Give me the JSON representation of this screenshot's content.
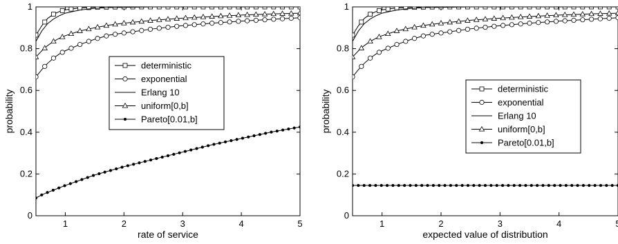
{
  "chart_data": [
    {
      "type": "line",
      "xlabel": "rate of service",
      "ylabel": "probability",
      "xlim": [
        0.5,
        5
      ],
      "ylim": [
        0,
        1
      ],
      "xticks": [
        1,
        2,
        3,
        4,
        5
      ],
      "yticks": [
        0,
        0.2,
        0.4,
        0.6,
        0.8,
        1
      ],
      "ytick_labels": [
        "0",
        "0.2",
        "0.4",
        "0.6",
        "0.8",
        "1"
      ],
      "grid": false,
      "legend_position": "center-right",
      "x": [
        0.5,
        0.6,
        0.7,
        0.8,
        0.9,
        1.0,
        1.25,
        1.5,
        1.75,
        2.0,
        2.5,
        3.0,
        3.5,
        4.0,
        4.5,
        5.0
      ],
      "series": [
        {
          "name": "deterministic",
          "marker": "square",
          "values": [
            0.865,
            0.91,
            0.945,
            0.965,
            0.978,
            0.986,
            0.995,
            0.998,
            0.999,
            1.0,
            1.0,
            1.0,
            1.0,
            1.0,
            1.0,
            1.0
          ]
        },
        {
          "name": "exponential",
          "marker": "circle",
          "values": [
            0.665,
            0.7,
            0.73,
            0.755,
            0.775,
            0.79,
            0.82,
            0.845,
            0.865,
            0.875,
            0.895,
            0.91,
            0.922,
            0.932,
            0.94,
            0.948
          ]
        },
        {
          "name": "Erlang 10",
          "marker": "none",
          "values": [
            0.835,
            0.885,
            0.92,
            0.942,
            0.958,
            0.97,
            0.985,
            0.993,
            0.997,
            0.998,
            1.0,
            1.0,
            1.0,
            1.0,
            1.0,
            1.0
          ]
        },
        {
          "name": "uniform[0,b]",
          "marker": "triangle",
          "values": [
            0.76,
            0.79,
            0.815,
            0.835,
            0.85,
            0.862,
            0.885,
            0.9,
            0.913,
            0.922,
            0.936,
            0.946,
            0.954,
            0.961,
            0.966,
            0.97
          ]
        },
        {
          "name": "Pareto[0.01,b]",
          "marker": "dot",
          "values": [
            0.085,
            0.1,
            0.112,
            0.123,
            0.134,
            0.145,
            0.17,
            0.195,
            0.215,
            0.235,
            0.27,
            0.305,
            0.34,
            0.37,
            0.4,
            0.425
          ]
        }
      ]
    },
    {
      "type": "line",
      "xlabel": "expected value of distribution",
      "ylabel": "probability",
      "xlim": [
        0.5,
        5
      ],
      "ylim": [
        0,
        1
      ],
      "xticks": [
        1,
        2,
        3,
        4,
        5
      ],
      "yticks": [
        0,
        0.2,
        0.4,
        0.6,
        0.8,
        1
      ],
      "ytick_labels": [
        "0",
        "0.2",
        "0.4",
        "0.6",
        "0.8",
        "1"
      ],
      "grid": false,
      "legend_position": "center-right",
      "x": [
        0.5,
        0.6,
        0.7,
        0.8,
        0.9,
        1.0,
        1.25,
        1.5,
        1.75,
        2.0,
        2.5,
        3.0,
        3.5,
        4.0,
        4.5,
        5.0
      ],
      "series": [
        {
          "name": "deterministic",
          "marker": "square",
          "values": [
            0.865,
            0.91,
            0.945,
            0.965,
            0.978,
            0.986,
            0.995,
            0.998,
            0.999,
            1.0,
            1.0,
            1.0,
            1.0,
            1.0,
            1.0,
            1.0
          ]
        },
        {
          "name": "exponential",
          "marker": "circle",
          "values": [
            0.665,
            0.7,
            0.73,
            0.755,
            0.775,
            0.79,
            0.82,
            0.845,
            0.865,
            0.875,
            0.895,
            0.91,
            0.922,
            0.932,
            0.94,
            0.948
          ]
        },
        {
          "name": "Erlang 10",
          "marker": "none",
          "values": [
            0.835,
            0.885,
            0.92,
            0.942,
            0.958,
            0.97,
            0.985,
            0.993,
            0.997,
            0.998,
            1.0,
            1.0,
            1.0,
            1.0,
            1.0,
            1.0
          ]
        },
        {
          "name": "uniform[0,b]",
          "marker": "triangle",
          "values": [
            0.76,
            0.79,
            0.815,
            0.835,
            0.85,
            0.862,
            0.885,
            0.9,
            0.913,
            0.922,
            0.936,
            0.946,
            0.954,
            0.961,
            0.966,
            0.97
          ]
        },
        {
          "name": "Pareto[0.01,b]",
          "marker": "dot",
          "values": [
            0.145,
            0.145,
            0.145,
            0.145,
            0.145,
            0.145,
            0.145,
            0.145,
            0.145,
            0.145,
            0.145,
            0.145,
            0.145,
            0.145,
            0.145,
            0.145
          ]
        }
      ]
    }
  ]
}
